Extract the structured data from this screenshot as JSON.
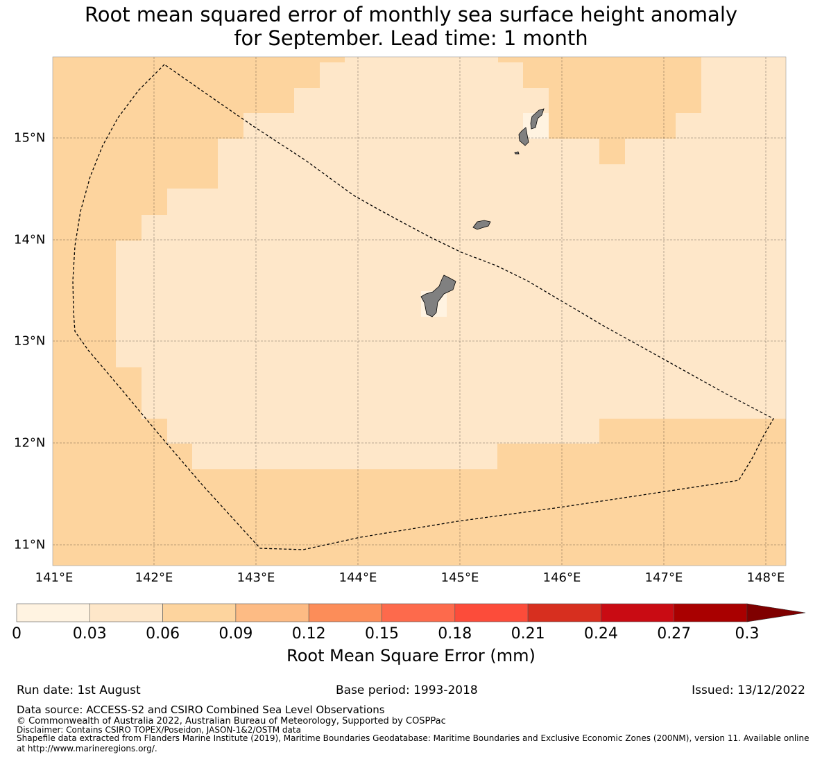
{
  "title": {
    "line1": "Root mean squared error of monthly sea surface height anomaly",
    "line2": "for September. Lead time: 1 month"
  },
  "map": {
    "lon_labels": [
      "141°E",
      "142°E",
      "143°E",
      "144°E",
      "145°E",
      "146°E",
      "147°E",
      "148°E"
    ],
    "lat_labels": [
      "15°N",
      "14°N",
      "13°N",
      "12°N",
      "11°N"
    ],
    "colors": {
      "ocean_light": "#fee7c9",
      "ocean_mid": "#fdd49e",
      "land": "#808080",
      "boundary": "#000000"
    }
  },
  "colorbar": {
    "ticks": [
      "0",
      "0.03",
      "0.06",
      "0.09",
      "0.12",
      "0.15",
      "0.18",
      "0.21",
      "0.24",
      "0.27",
      "0.3"
    ],
    "label": "Root Mean Square Error (mm)",
    "colors": [
      "#fff3e1",
      "#fee7c9",
      "#fdd49e",
      "#fdbb84",
      "#fc8d59",
      "#fd6a4c",
      "#fc4c3a",
      "#d72f1f",
      "#c90b13",
      "#a90000",
      "#7f0000"
    ]
  },
  "footer": {
    "run_date": "Run date: 1st August",
    "base_period": "Base period: 1993-2018",
    "issued": "Issued: 13/12/2022",
    "data_source": "Data source: ACCESS-S2 and CSIRO Combined Sea Level Observations",
    "copyright": "© Commonwealth of Australia 2022, Australian Bureau of Meteorology, Supported by COSPPac",
    "disclaimer": "Disclaimer: Contains CSIRO TOPEX/Poseidon, JASON-1&2/OSTM data",
    "shapefile": "Shapefile data extracted from Flanders Marine Institute (2019), Maritime Boundaries Geodatabase: Maritime Boundaries and Exclusive Economic Zones (200NM), version 11. Available online",
    "shapefile_url": "at http://www.marineregions.org/."
  }
}
